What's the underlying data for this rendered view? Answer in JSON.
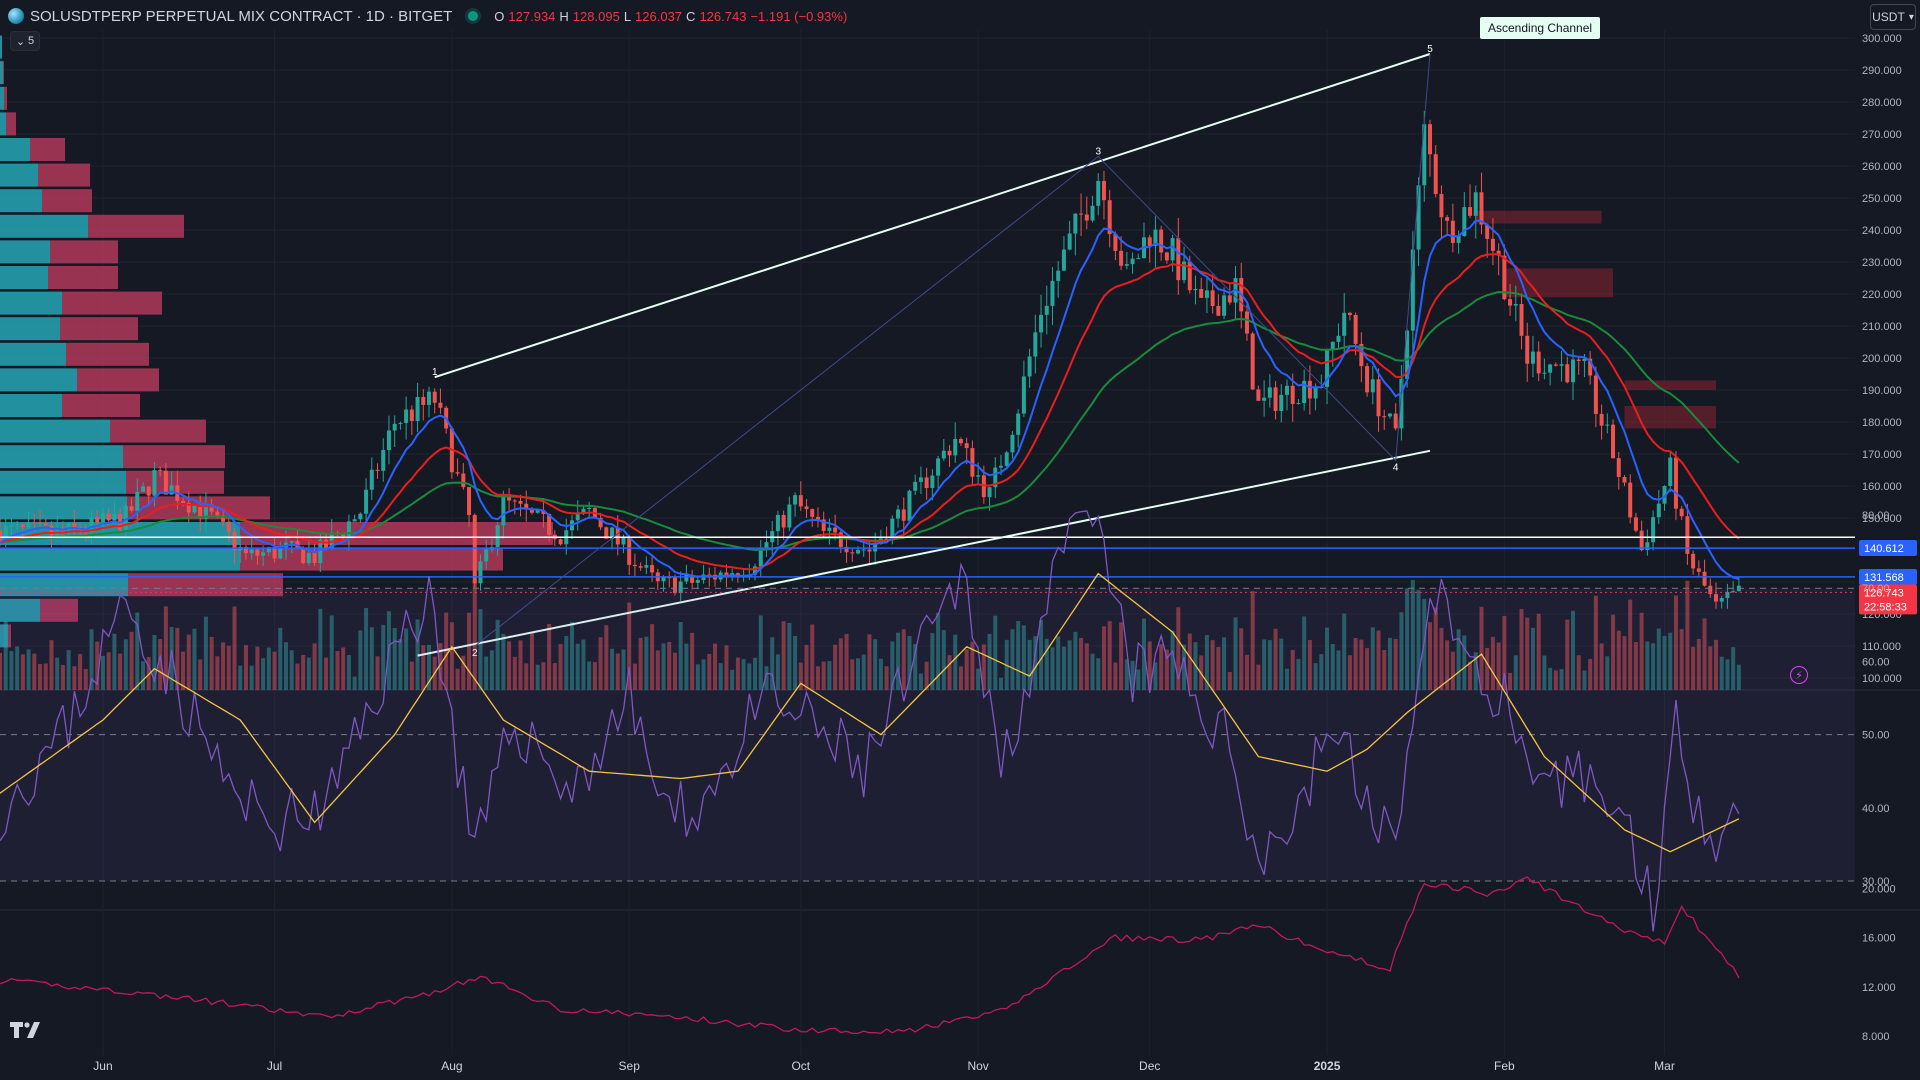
{
  "header": {
    "symbol": "SOLUSDTPERP PERPETUAL MIX CONTRACT · 1D · BITGET",
    "ohlc": [
      {
        "k": "O",
        "v": "127.934"
      },
      {
        "k": "H",
        "v": "128.095"
      },
      {
        "k": "L",
        "v": "126.037"
      },
      {
        "k": "C",
        "v": "126.743"
      },
      {
        "k": "",
        "v": "−1.191 (−0.93%)"
      }
    ],
    "collapse_count": "5",
    "currency": "USDT"
  },
  "annotation": {
    "ascending_channel": "Ascending Channel"
  },
  "colors": {
    "up": "#26a69a",
    "down": "#ef5350",
    "ema_fast": "#2962ff",
    "ema_mid": "#e91e1e",
    "ema_slow": "#1b8a3a",
    "rsi": "#7e57c2",
    "rsi_ma": "#f5c542",
    "atr": "#c2185b",
    "vp_up": "#26a6b5",
    "vp_down": "#d23e66"
  },
  "chart_data": [
    {
      "type": "candlestick",
      "symbol": "SOLUSDTPERP",
      "timeframe": "1D",
      "ylim": [
        96,
        302
      ],
      "yticks": [
        "100.000",
        "110.000",
        "120.000",
        "130.000",
        "140.000",
        "150.000",
        "160.000",
        "170.000",
        "180.000",
        "190.000",
        "200.000",
        "210.000",
        "220.000",
        "230.000",
        "240.000",
        "250.000",
        "260.000",
        "270.000",
        "280.000",
        "290.000",
        "300.000"
      ],
      "xticks": [
        "Jun",
        "Jul",
        "Aug",
        "Sep",
        "Oct",
        "Nov",
        "Dec",
        "2025",
        "Feb",
        "Mar"
      ],
      "x_start": "2024-05-14",
      "price_marks": [
        {
          "label": "140.612",
          "value": 140.612,
          "color": "#2962ff"
        },
        {
          "label": "131.568",
          "value": 131.568,
          "color": "#2962ff"
        },
        {
          "label": "126.743",
          "sub": "22:58:33",
          "value": 126.743,
          "color": "#f23645"
        }
      ],
      "horizontal_lines": [
        144,
        140.6,
        131.6
      ],
      "close_path": [
        [
          "2024-05-14",
          146
        ],
        [
          "2024-05-25",
          145
        ],
        [
          "2024-06-05",
          150
        ],
        [
          "2024-06-10",
          163
        ],
        [
          "2024-06-20",
          150
        ],
        [
          "2024-06-26",
          138
        ],
        [
          "2024-07-03",
          140
        ],
        [
          "2024-07-08",
          138
        ],
        [
          "2024-07-16",
          152
        ],
        [
          "2024-07-22",
          180
        ],
        [
          "2024-07-29",
          187
        ],
        [
          "2024-08-04",
          150
        ],
        [
          "2024-08-05",
          128
        ],
        [
          "2024-08-10",
          155
        ],
        [
          "2024-08-20",
          145
        ],
        [
          "2024-08-25",
          152
        ],
        [
          "2024-09-06",
          129
        ],
        [
          "2024-09-12",
          130
        ],
        [
          "2024-09-22",
          135
        ],
        [
          "2024-09-30",
          155
        ],
        [
          "2024-10-05",
          145
        ],
        [
          "2024-10-13",
          140
        ],
        [
          "2024-10-20",
          155
        ],
        [
          "2024-10-28",
          175
        ],
        [
          "2024-11-03",
          157
        ],
        [
          "2024-11-08",
          185
        ],
        [
          "2024-11-12",
          215
        ],
        [
          "2024-11-18",
          240
        ],
        [
          "2024-11-22",
          257
        ],
        [
          "2024-11-27",
          225
        ],
        [
          "2024-12-01",
          240
        ],
        [
          "2024-12-05",
          232
        ],
        [
          "2024-12-10",
          215
        ],
        [
          "2024-12-16",
          222
        ],
        [
          "2024-12-20",
          185
        ],
        [
          "2024-12-26",
          190
        ],
        [
          "2024-12-31",
          193
        ],
        [
          "2025-01-04",
          215
        ],
        [
          "2025-01-08",
          193
        ],
        [
          "2025-01-13",
          175
        ],
        [
          "2025-01-18",
          270
        ],
        [
          "2025-01-22",
          240
        ],
        [
          "2025-01-27",
          250
        ],
        [
          "2025-01-31",
          230
        ],
        [
          "2025-02-05",
          200
        ],
        [
          "2025-02-10",
          198
        ],
        [
          "2025-02-15",
          195
        ],
        [
          "2025-02-20",
          170
        ],
        [
          "2025-02-25",
          140
        ],
        [
          "2025-03-02",
          165
        ],
        [
          "2025-03-05",
          138
        ],
        [
          "2025-03-10",
          122
        ],
        [
          "2025-03-14",
          126.7
        ]
      ],
      "channel_points": [
        {
          "label": "1",
          "date": "2024-07-29",
          "price": 194
        },
        {
          "label": "2",
          "date": "2024-08-05",
          "price": 110
        },
        {
          "label": "3",
          "date": "2024-11-22",
          "price": 263
        },
        {
          "label": "4",
          "date": "2025-01-13",
          "price": 168
        },
        {
          "label": "5",
          "date": "2025-01-19",
          "price": 295
        }
      ],
      "volume_profile_rows": [
        {
          "price": 297,
          "up": 2,
          "down": 0
        },
        {
          "price": 289,
          "up": 3,
          "down": 1
        },
        {
          "price": 281,
          "up": 4,
          "down": 3
        },
        {
          "price": 273,
          "up": 6,
          "down": 10
        },
        {
          "price": 265,
          "up": 30,
          "down": 35
        },
        {
          "price": 257,
          "up": 38,
          "down": 52
        },
        {
          "price": 249,
          "up": 42,
          "down": 50
        },
        {
          "price": 241,
          "up": 88,
          "down": 96
        },
        {
          "price": 233,
          "up": 50,
          "down": 68
        },
        {
          "price": 225,
          "up": 48,
          "down": 70
        },
        {
          "price": 217,
          "up": 62,
          "down": 100
        },
        {
          "price": 209,
          "up": 60,
          "down": 78
        },
        {
          "price": 201,
          "up": 66,
          "down": 83
        },
        {
          "price": 193,
          "up": 77,
          "down": 82
        },
        {
          "price": 185,
          "up": 62,
          "down": 78
        },
        {
          "price": 177,
          "up": 110,
          "down": 96
        },
        {
          "price": 169,
          "up": 123,
          "down": 102
        },
        {
          "price": 161,
          "up": 126,
          "down": 98
        },
        {
          "price": 153,
          "up": 127,
          "down": 143
        },
        {
          "price": 145,
          "up": 240,
          "down": 313
        },
        {
          "price": 137,
          "up": 240,
          "down": 263
        },
        {
          "price": 129,
          "up": 128,
          "down": 155
        },
        {
          "price": 121,
          "up": 40,
          "down": 38
        },
        {
          "price": 113,
          "up": 8,
          "down": 3
        }
      ],
      "supply_zones": [
        {
          "from": "2025-01-27",
          "to": "2025-02-18",
          "y1": 242,
          "y2": 246
        },
        {
          "from": "2025-02-01",
          "to": "2025-02-20",
          "y1": 219,
          "y2": 228
        },
        {
          "from": "2025-02-22",
          "to": "2025-03-10",
          "y1": 190,
          "y2": 193
        },
        {
          "from": "2025-02-22",
          "to": "2025-03-10",
          "y1": 178,
          "y2": 185
        }
      ]
    },
    {
      "type": "line",
      "name": "RSI",
      "ylim": [
        25,
        80
      ],
      "yticks": [
        "30.00",
        "40.00",
        "50.00",
        "60.00",
        "70.00",
        "80.00"
      ],
      "bands": [
        30,
        50,
        70
      ],
      "rsi_path": [
        [
          "2024-05-14",
          40
        ],
        [
          "2024-05-25",
          50
        ],
        [
          "2024-06-05",
          68
        ],
        [
          "2024-06-15",
          55
        ],
        [
          "2024-06-25",
          40
        ],
        [
          "2024-07-03",
          38
        ],
        [
          "2024-07-10",
          40
        ],
        [
          "2024-07-20",
          58
        ],
        [
          "2024-07-28",
          70
        ],
        [
          "2024-08-05",
          33
        ],
        [
          "2024-08-12",
          52
        ],
        [
          "2024-08-22",
          42
        ],
        [
          "2024-09-01",
          55
        ],
        [
          "2024-09-08",
          38
        ],
        [
          "2024-09-15",
          42
        ],
        [
          "2024-09-25",
          55
        ],
        [
          "2024-10-05",
          50
        ],
        [
          "2024-10-12",
          45
        ],
        [
          "2024-10-20",
          58
        ],
        [
          "2024-10-30",
          72
        ],
        [
          "2024-11-05",
          45
        ],
        [
          "2024-11-12",
          65
        ],
        [
          "2024-11-18",
          78
        ],
        [
          "2024-11-22",
          77
        ],
        [
          "2024-11-28",
          58
        ],
        [
          "2024-12-05",
          60
        ],
        [
          "2024-12-15",
          48
        ],
        [
          "2024-12-20",
          34
        ],
        [
          "2024-12-26",
          38
        ],
        [
          "2025-01-02",
          52
        ],
        [
          "2025-01-08",
          40
        ],
        [
          "2025-01-14",
          36
        ],
        [
          "2025-01-19",
          73
        ],
        [
          "2025-01-25",
          60
        ],
        [
          "2025-02-01",
          55
        ],
        [
          "2025-02-06",
          40
        ],
        [
          "2025-02-15",
          45
        ],
        [
          "2025-02-22",
          38
        ],
        [
          "2025-02-27",
          27
        ],
        [
          "2025-03-03",
          51
        ],
        [
          "2025-03-06",
          42
        ],
        [
          "2025-03-10",
          37
        ],
        [
          "2025-03-14",
          41
        ]
      ],
      "rsi_ma_path": [
        [
          "2024-05-14",
          42
        ],
        [
          "2024-06-01",
          52
        ],
        [
          "2024-06-10",
          59
        ],
        [
          "2024-06-25",
          52
        ],
        [
          "2024-07-08",
          38
        ],
        [
          "2024-07-22",
          50
        ],
        [
          "2024-08-01",
          62
        ],
        [
          "2024-08-10",
          52
        ],
        [
          "2024-08-25",
          45
        ],
        [
          "2024-09-10",
          44
        ],
        [
          "2024-09-20",
          45
        ],
        [
          "2024-10-01",
          57
        ],
        [
          "2024-10-15",
          50
        ],
        [
          "2024-10-30",
          62
        ],
        [
          "2024-11-10",
          58
        ],
        [
          "2024-11-22",
          72
        ],
        [
          "2024-12-05",
          64
        ],
        [
          "2024-12-20",
          47
        ],
        [
          "2025-01-01",
          45
        ],
        [
          "2025-01-08",
          48
        ],
        [
          "2025-01-15",
          53
        ],
        [
          "2025-01-28",
          61
        ],
        [
          "2025-02-08",
          47
        ],
        [
          "2025-02-22",
          37
        ],
        [
          "2025-03-02",
          34
        ],
        [
          "2025-03-10",
          37
        ],
        [
          "2025-03-14",
          38.5
        ]
      ]
    },
    {
      "type": "line",
      "name": "ATR",
      "ylim": [
        7,
        22
      ],
      "yticks": [
        "8.000",
        "12.000",
        "16.000",
        "20.000"
      ],
      "atr_path": [
        [
          "2024-05-14",
          12.5
        ],
        [
          "2024-06-01",
          11.8
        ],
        [
          "2024-06-20",
          10.8
        ],
        [
          "2024-07-10",
          9.5
        ],
        [
          "2024-07-28",
          11.5
        ],
        [
          "2024-08-06",
          12.8
        ],
        [
          "2024-08-20",
          10.2
        ],
        [
          "2024-09-10",
          9.5
        ],
        [
          "2024-10-01",
          8.5
        ],
        [
          "2024-10-20",
          8.4
        ],
        [
          "2024-11-05",
          10
        ],
        [
          "2024-11-15",
          13
        ],
        [
          "2024-11-25",
          16
        ],
        [
          "2024-12-10",
          15.8
        ],
        [
          "2024-12-20",
          17
        ],
        [
          "2024-12-31",
          15
        ],
        [
          "2025-01-12",
          13.5
        ],
        [
          "2025-01-18",
          20.5
        ],
        [
          "2025-01-30",
          19.5
        ],
        [
          "2025-02-05",
          20.8
        ],
        [
          "2025-02-20",
          17
        ],
        [
          "2025-03-01",
          15.5
        ],
        [
          "2025-03-04",
          18.5
        ],
        [
          "2025-03-14",
          12.8
        ]
      ]
    }
  ]
}
